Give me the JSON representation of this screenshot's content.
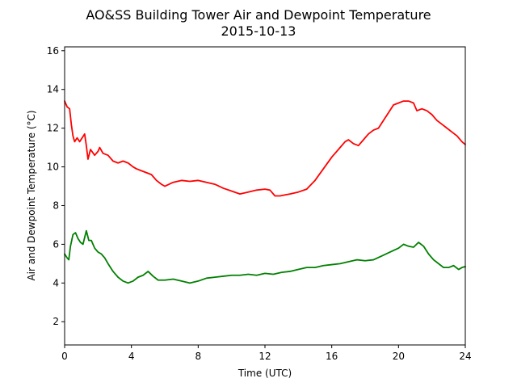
{
  "chart_data": {
    "type": "line",
    "title": "AO&SS Building Tower Air and Dewpoint Temperature",
    "subtitle": "2015-10-13",
    "xlabel": "Time (UTC)",
    "ylabel": "Air and Dewpoint Temperature (°C)",
    "xlim": [
      0,
      24
    ],
    "ylim": [
      0.8,
      16.2
    ],
    "x_ticks": [
      0,
      4,
      8,
      12,
      16,
      20,
      24
    ],
    "y_ticks": [
      2,
      4,
      6,
      8,
      10,
      12,
      14,
      16
    ],
    "grid": false,
    "series": [
      {
        "color": "#ff0000",
        "points": [
          [
            0.0,
            13.4
          ],
          [
            0.15,
            13.1
          ],
          [
            0.3,
            13.0
          ],
          [
            0.4,
            12.2
          ],
          [
            0.5,
            11.6
          ],
          [
            0.6,
            11.3
          ],
          [
            0.75,
            11.5
          ],
          [
            0.9,
            11.3
          ],
          [
            1.05,
            11.5
          ],
          [
            1.2,
            11.7
          ],
          [
            1.3,
            11.1
          ],
          [
            1.4,
            10.4
          ],
          [
            1.55,
            10.9
          ],
          [
            1.8,
            10.6
          ],
          [
            2.0,
            10.8
          ],
          [
            2.1,
            11.0
          ],
          [
            2.3,
            10.7
          ],
          [
            2.6,
            10.6
          ],
          [
            2.9,
            10.3
          ],
          [
            3.2,
            10.2
          ],
          [
            3.5,
            10.3
          ],
          [
            3.8,
            10.2
          ],
          [
            4.1,
            10.0
          ],
          [
            4.3,
            9.9
          ],
          [
            4.6,
            9.8
          ],
          [
            4.9,
            9.7
          ],
          [
            5.2,
            9.6
          ],
          [
            5.5,
            9.3
          ],
          [
            5.8,
            9.1
          ],
          [
            6.0,
            9.0
          ],
          [
            6.5,
            9.2
          ],
          [
            7.0,
            9.3
          ],
          [
            7.5,
            9.25
          ],
          [
            8.0,
            9.3
          ],
          [
            8.5,
            9.2
          ],
          [
            9.0,
            9.1
          ],
          [
            9.5,
            8.9
          ],
          [
            10.0,
            8.75
          ],
          [
            10.5,
            8.6
          ],
          [
            11.0,
            8.7
          ],
          [
            11.5,
            8.8
          ],
          [
            12.0,
            8.85
          ],
          [
            12.3,
            8.8
          ],
          [
            12.6,
            8.5
          ],
          [
            12.9,
            8.5
          ],
          [
            13.2,
            8.55
          ],
          [
            13.5,
            8.6
          ],
          [
            14.0,
            8.7
          ],
          [
            14.5,
            8.85
          ],
          [
            15.0,
            9.3
          ],
          [
            15.5,
            9.9
          ],
          [
            16.0,
            10.5
          ],
          [
            16.5,
            11.0
          ],
          [
            16.8,
            11.3
          ],
          [
            17.0,
            11.4
          ],
          [
            17.3,
            11.2
          ],
          [
            17.6,
            11.1
          ],
          [
            17.9,
            11.4
          ],
          [
            18.2,
            11.7
          ],
          [
            18.5,
            11.9
          ],
          [
            18.8,
            12.0
          ],
          [
            19.1,
            12.4
          ],
          [
            19.4,
            12.8
          ],
          [
            19.7,
            13.2
          ],
          [
            20.0,
            13.3
          ],
          [
            20.3,
            13.4
          ],
          [
            20.6,
            13.4
          ],
          [
            20.9,
            13.3
          ],
          [
            21.1,
            12.9
          ],
          [
            21.4,
            13.0
          ],
          [
            21.7,
            12.9
          ],
          [
            22.0,
            12.7
          ],
          [
            22.3,
            12.4
          ],
          [
            22.6,
            12.2
          ],
          [
            22.9,
            12.0
          ],
          [
            23.2,
            11.8
          ],
          [
            23.5,
            11.6
          ],
          [
            23.8,
            11.3
          ],
          [
            24.0,
            11.15
          ]
        ]
      },
      {
        "color": "#008000",
        "points": [
          [
            0.0,
            5.5
          ],
          [
            0.15,
            5.3
          ],
          [
            0.25,
            5.2
          ],
          [
            0.35,
            5.9
          ],
          [
            0.5,
            6.5
          ],
          [
            0.65,
            6.6
          ],
          [
            0.8,
            6.3
          ],
          [
            0.95,
            6.1
          ],
          [
            1.1,
            6.0
          ],
          [
            1.3,
            6.7
          ],
          [
            1.45,
            6.2
          ],
          [
            1.6,
            6.2
          ],
          [
            1.8,
            5.8
          ],
          [
            2.0,
            5.6
          ],
          [
            2.2,
            5.5
          ],
          [
            2.4,
            5.3
          ],
          [
            2.6,
            5.0
          ],
          [
            2.9,
            4.6
          ],
          [
            3.2,
            4.3
          ],
          [
            3.5,
            4.1
          ],
          [
            3.8,
            4.0
          ],
          [
            4.1,
            4.1
          ],
          [
            4.4,
            4.3
          ],
          [
            4.7,
            4.4
          ],
          [
            5.0,
            4.6
          ],
          [
            5.3,
            4.35
          ],
          [
            5.6,
            4.15
          ],
          [
            6.0,
            4.15
          ],
          [
            6.5,
            4.2
          ],
          [
            7.0,
            4.1
          ],
          [
            7.5,
            4.0
          ],
          [
            8.0,
            4.1
          ],
          [
            8.5,
            4.25
          ],
          [
            9.0,
            4.3
          ],
          [
            9.5,
            4.35
          ],
          [
            10.0,
            4.4
          ],
          [
            10.5,
            4.4
          ],
          [
            11.0,
            4.45
          ],
          [
            11.5,
            4.4
          ],
          [
            12.0,
            4.5
          ],
          [
            12.5,
            4.45
          ],
          [
            13.0,
            4.55
          ],
          [
            13.5,
            4.6
          ],
          [
            14.0,
            4.7
          ],
          [
            14.5,
            4.8
          ],
          [
            15.0,
            4.8
          ],
          [
            15.5,
            4.9
          ],
          [
            16.0,
            4.95
          ],
          [
            16.5,
            5.0
          ],
          [
            17.0,
            5.1
          ],
          [
            17.5,
            5.2
          ],
          [
            18.0,
            5.15
          ],
          [
            18.5,
            5.2
          ],
          [
            19.0,
            5.4
          ],
          [
            19.5,
            5.6
          ],
          [
            20.0,
            5.8
          ],
          [
            20.3,
            6.0
          ],
          [
            20.6,
            5.9
          ],
          [
            20.9,
            5.85
          ],
          [
            21.2,
            6.1
          ],
          [
            21.5,
            5.9
          ],
          [
            21.8,
            5.5
          ],
          [
            22.1,
            5.2
          ],
          [
            22.4,
            5.0
          ],
          [
            22.7,
            4.8
          ],
          [
            23.0,
            4.8
          ],
          [
            23.3,
            4.9
          ],
          [
            23.6,
            4.7
          ],
          [
            23.8,
            4.8
          ],
          [
            24.0,
            4.85
          ]
        ]
      }
    ]
  }
}
